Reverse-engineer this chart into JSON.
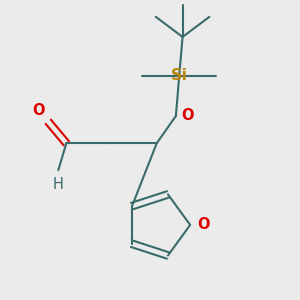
{
  "bg_color": "#ebebeb",
  "bond_color": "#3a6b6b",
  "oxygen_color": "#dd0000",
  "silicon_color": "#b8860b",
  "line_width": 1.5,
  "font_size": 10.5,
  "fig_size": [
    3.0,
    3.0
  ],
  "dpi": 100,
  "xlim": [
    -1.6,
    2.0
  ],
  "ylim": [
    -2.2,
    2.2
  ]
}
